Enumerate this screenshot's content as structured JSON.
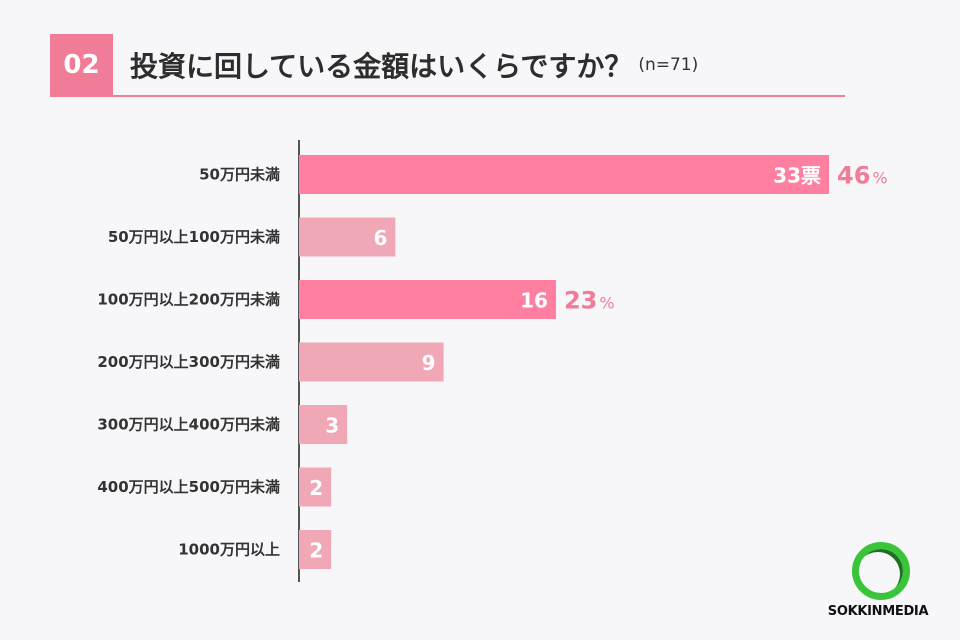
{
  "header": {
    "number": "02",
    "title": "投資に回している金額はいくらですか？",
    "sample": "(n=71)"
  },
  "brand": {
    "name": "SOKKINMEDIA"
  },
  "colors": {
    "highlight": "#ff7fa0",
    "normal": "#f0a7b6",
    "accent": "#f07c98",
    "axis": "#555555",
    "category_text": "#333333",
    "logo": "#39c43a"
  },
  "chart_data": {
    "type": "bar",
    "orientation": "horizontal",
    "categories": [
      "50万円未満",
      "50万円以上100万円未満",
      "100万円以上200万円未満",
      "200万円以上300万円未満",
      "300万円以上400万円未満",
      "400万円以上500万円未満",
      "1000万円以上"
    ],
    "values": [
      33,
      6,
      16,
      9,
      3,
      2,
      2
    ],
    "value_labels": [
      "33票",
      "6",
      "16",
      "9",
      "3",
      "2",
      "2"
    ],
    "percent_labels": [
      "46",
      "",
      "23",
      "",
      "",
      "",
      ""
    ],
    "percent_unit": "%",
    "highlighted": [
      true,
      false,
      true,
      false,
      false,
      false,
      false
    ],
    "xlim": [
      0,
      33
    ],
    "grid": false
  }
}
